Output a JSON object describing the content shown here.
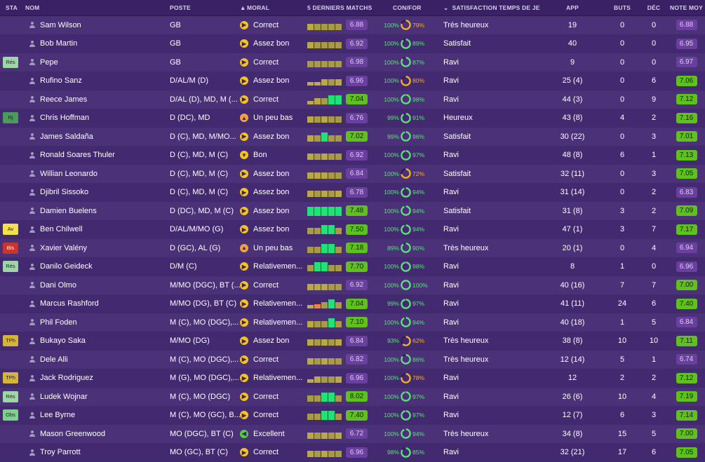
{
  "headers": {
    "sta": "STA",
    "nom": "NOM",
    "poste": "POSTE",
    "moral": "MORAL",
    "last5": "5 DERNIERS MATCHS",
    "confor": "CON/FOR",
    "satisfaction": "SATISFACTION TEMPS DE JEU",
    "app": "APP",
    "buts": "BUTS",
    "dec": "DÉC",
    "note": "NOTE MOY"
  },
  "colors": {
    "bg": "#3b2368",
    "green": "#5fc11e",
    "purple_pill": "#6b3fa0",
    "moral_yellow": "#f4c41a",
    "moral_orange": "#f0a040",
    "moral_green": "#4cd23a"
  },
  "rows": [
    {
      "sta": "",
      "nom": "Sam Wilson",
      "poste": "GB",
      "moral": "Correct",
      "moral_kind": "correct",
      "last5": [
        "y",
        "g",
        "g",
        "g",
        "g"
      ],
      "last_avg": "6.88",
      "last_good": false,
      "con": "100%",
      "for": "79%",
      "for_frac": 0.79,
      "sat": "Très heureux",
      "app": "19",
      "buts": "0",
      "dec": "0",
      "note": "6.88",
      "note_good": false
    },
    {
      "sta": "",
      "nom": "Bob Martin",
      "poste": "GB",
      "moral": "Assez bon",
      "moral_kind": "correct",
      "last5": [
        "y",
        "g",
        "g",
        "g",
        "g"
      ],
      "last_avg": "6.92",
      "last_good": false,
      "con": "100%",
      "for": "89%",
      "for_frac": 0.89,
      "sat": "Satisfait",
      "app": "40",
      "buts": "0",
      "dec": "0",
      "note": "6.95",
      "note_good": false
    },
    {
      "sta": "Rés",
      "sta_color": "#9ed6a8",
      "nom": "Pepe",
      "poste": "GB",
      "moral": "Correct",
      "moral_kind": "correct",
      "last5": [
        "g",
        "g",
        "g",
        "g",
        "g"
      ],
      "last_avg": "6.98",
      "last_good": false,
      "con": "100%",
      "for": "87%",
      "for_frac": 0.87,
      "sat": "Ravi",
      "app": "9",
      "buts": "0",
      "dec": "0",
      "note": "6.97",
      "note_good": false
    },
    {
      "sta": "",
      "nom": "Rufino Sanz",
      "poste": "D/AL/M (D)",
      "moral": "Assez bon",
      "moral_kind": "correct",
      "last5": [
        "s",
        "s",
        "y",
        "g",
        "y"
      ],
      "last_avg": "6.96",
      "last_good": false,
      "con": "100%",
      "for": "80%",
      "for_frac": 0.8,
      "sat": "Ravi",
      "app": "25 (4)",
      "buts": "0",
      "dec": "6",
      "note": "7.06",
      "note_good": true
    },
    {
      "sta": "",
      "nom": "Reece James",
      "poste": "D/AL (D), MD, M (...",
      "moral": "Correct",
      "moral_kind": "correct",
      "last5": [
        "s",
        "y",
        "g",
        "b",
        "b"
      ],
      "last_avg": "7.04",
      "last_good": true,
      "con": "100%",
      "for": "98%",
      "for_frac": 0.98,
      "sat": "Ravi",
      "app": "44 (3)",
      "buts": "0",
      "dec": "9",
      "note": "7.12",
      "note_good": true
    },
    {
      "sta": "Rj",
      "sta_color": "#4c9a5e",
      "nom": "Chris Hoffman",
      "poste": "D (DC), MD",
      "moral": "Un peu bas",
      "moral_kind": "bas",
      "last5": [
        "y",
        "g",
        "y",
        "g",
        "g"
      ],
      "last_avg": "6.76",
      "last_good": false,
      "con": "99%",
      "for": "91%",
      "for_frac": 0.91,
      "sat": "Heureux",
      "app": "43 (8)",
      "buts": "4",
      "dec": "2",
      "note": "7.16",
      "note_good": true
    },
    {
      "sta": "",
      "nom": "James Saldaña",
      "poste": "D (C), MD, M/MO...",
      "moral": "Assez bon",
      "moral_kind": "correct",
      "last5": [
        "y",
        "g",
        "b",
        "g",
        "g"
      ],
      "last_avg": "7.02",
      "last_good": true,
      "con": "99%",
      "for": "96%",
      "for_frac": 0.96,
      "sat": "Satisfait",
      "app": "30 (22)",
      "buts": "0",
      "dec": "3",
      "note": "7.01",
      "note_good": true
    },
    {
      "sta": "",
      "nom": "Ronald Soares Thuler",
      "poste": "D (C), MD, M (C)",
      "moral": "Bon",
      "moral_kind": "bon",
      "last5": [
        "y",
        "g",
        "y",
        "g",
        "g"
      ],
      "last_avg": "6.92",
      "last_good": false,
      "con": "100%",
      "for": "97%",
      "for_frac": 0.97,
      "sat": "Ravi",
      "app": "48 (8)",
      "buts": "6",
      "dec": "1",
      "note": "7.13",
      "note_good": true
    },
    {
      "sta": "",
      "nom": "Willian Leonardo",
      "poste": "D (C), MD, M (C)",
      "moral": "Assez bon",
      "moral_kind": "correct",
      "last5": [
        "y",
        "y",
        "y",
        "g",
        "g"
      ],
      "last_avg": "6.84",
      "last_good": false,
      "con": "100%",
      "for": "72%",
      "for_frac": 0.72,
      "sat": "Satisfait",
      "app": "32 (11)",
      "buts": "0",
      "dec": "3",
      "note": "7.05",
      "note_good": true
    },
    {
      "sta": "",
      "nom": "Djibril Sissoko",
      "poste": "D (C), MD, M (C)",
      "moral": "Assez bon",
      "moral_kind": "correct",
      "last5": [
        "y",
        "g",
        "y",
        "g",
        "y"
      ],
      "last_avg": "6.78",
      "last_good": false,
      "con": "100%",
      "for": "94%",
      "for_frac": 0.94,
      "sat": "Ravi",
      "app": "31 (14)",
      "buts": "0",
      "dec": "2",
      "note": "6.83",
      "note_good": false
    },
    {
      "sta": "",
      "nom": "Damien Buelens",
      "poste": "D (DC), MD, M (C)",
      "moral": "Assez bon",
      "moral_kind": "correct",
      "last5": [
        "b",
        "b",
        "b",
        "b",
        "b"
      ],
      "last_avg": "7.48",
      "last_good": true,
      "con": "100%",
      "for": "94%",
      "for_frac": 0.94,
      "sat": "Satisfait",
      "app": "31 (8)",
      "buts": "3",
      "dec": "2",
      "note": "7.09",
      "note_good": true
    },
    {
      "sta": "Av",
      "sta_color": "#f2e24a",
      "nom": "Ben Chilwell",
      "poste": "D/AL/M/MO (G)",
      "moral": "Assez bon",
      "moral_kind": "correct",
      "last5": [
        "g",
        "g",
        "b",
        "b",
        "g"
      ],
      "last_avg": "7.50",
      "last_good": true,
      "con": "100%",
      "for": "94%",
      "for_frac": 0.94,
      "sat": "Ravi",
      "app": "47 (1)",
      "buts": "3",
      "dec": "7",
      "note": "7.17",
      "note_good": true
    },
    {
      "sta": "Bls",
      "sta_color": "#c8352e",
      "sta_text": "#ffffff",
      "nom": "Xavier Valény",
      "poste": "D (GC), AL (G)",
      "moral": "Un peu bas",
      "moral_kind": "bas",
      "last5": [
        "g",
        "g",
        "b",
        "b",
        "g"
      ],
      "last_avg": "7.18",
      "last_good": true,
      "con": "89%",
      "for": "90%",
      "for_frac": 0.9,
      "sat": "Très heureux",
      "app": "20 (1)",
      "buts": "0",
      "dec": "4",
      "note": "6.94",
      "note_good": false
    },
    {
      "sta": "Rés",
      "sta_color": "#9ed6a8",
      "nom": "Danilo Geideck",
      "poste": "D/M (C)",
      "moral": "Relativemen...",
      "moral_kind": "correct",
      "last5": [
        "g",
        "b",
        "b",
        "g",
        "g"
      ],
      "last_avg": "7.70",
      "last_good": true,
      "con": "100%",
      "for": "98%",
      "for_frac": 0.98,
      "sat": "Ravi",
      "app": "8",
      "buts": "1",
      "dec": "0",
      "note": "6.96",
      "note_good": false
    },
    {
      "sta": "",
      "nom": "Dani Olmo",
      "poste": "M/MO (DGC), BT (...",
      "moral": "Correct",
      "moral_kind": "correct",
      "last5": [
        "y",
        "y",
        "y",
        "g",
        "g"
      ],
      "last_avg": "6.92",
      "last_good": false,
      "con": "100%",
      "for": "100%",
      "for_frac": 1.0,
      "sat": "Ravi",
      "app": "40 (16)",
      "buts": "7",
      "dec": "7",
      "note": "7.00",
      "note_good": true
    },
    {
      "sta": "",
      "nom": "Marcus Rashford",
      "poste": "M/MO (DG), BT (C)",
      "moral": "Relativemen...",
      "moral_kind": "correct",
      "last5": [
        "s",
        "o",
        "g",
        "b",
        "g"
      ],
      "last_avg": "7.04",
      "last_good": true,
      "con": "99%",
      "for": "97%",
      "for_frac": 0.97,
      "sat": "Ravi",
      "app": "41 (11)",
      "buts": "24",
      "dec": "6",
      "note": "7.40",
      "note_good": true
    },
    {
      "sta": "",
      "nom": "Phil Foden",
      "poste": "M (C), MO (DGC),...",
      "moral": "Relativemen...",
      "moral_kind": "correct",
      "last5": [
        "y",
        "g",
        "g",
        "b",
        "g"
      ],
      "last_avg": "7.10",
      "last_good": true,
      "con": "100%",
      "for": "94%",
      "for_frac": 0.94,
      "sat": "Ravi",
      "app": "40 (18)",
      "buts": "1",
      "dec": "5",
      "note": "6.84",
      "note_good": false
    },
    {
      "sta": "TPh",
      "sta_color": "#d6b43a",
      "nom": "Bukayo Saka",
      "poste": "M/MO (DG)",
      "moral": "Assez bon",
      "moral_kind": "correct",
      "last5": [
        "y",
        "g",
        "y",
        "g",
        "y"
      ],
      "last_avg": "6.84",
      "last_good": false,
      "con": "93%",
      "for": "62%",
      "for_frac": 0.62,
      "sat": "Très heureux",
      "app": "38 (8)",
      "buts": "10",
      "dec": "10",
      "note": "7.11",
      "note_good": true
    },
    {
      "sta": "",
      "nom": "Dele Alli",
      "poste": "M (C), MO (DGC),...",
      "moral": "Correct",
      "moral_kind": "correct",
      "last5": [
        "y",
        "g",
        "y",
        "g",
        "g"
      ],
      "last_avg": "6.82",
      "last_good": false,
      "con": "100%",
      "for": "86%",
      "for_frac": 0.86,
      "sat": "Très heureux",
      "app": "12 (14)",
      "buts": "5",
      "dec": "1",
      "note": "6.74",
      "note_good": false
    },
    {
      "sta": "TPh",
      "sta_color": "#d6b43a",
      "nom": "Jack Rodriguez",
      "poste": "M (G), MO (DGC),...",
      "moral": "Relativemen...",
      "moral_kind": "correct",
      "last5": [
        "s",
        "y",
        "g",
        "g",
        "y"
      ],
      "last_avg": "6.96",
      "last_good": false,
      "con": "100%",
      "for": "78%",
      "for_frac": 0.78,
      "sat": "Ravi",
      "app": "12",
      "buts": "2",
      "dec": "2",
      "note": "7.12",
      "note_good": true
    },
    {
      "sta": "Rés",
      "sta_color": "#9ed6a8",
      "nom": "Ludek Wojnar",
      "poste": "M (C), MO (DGC)",
      "moral": "Correct",
      "moral_kind": "correct",
      "last5": [
        "g",
        "g",
        "b",
        "b",
        "g"
      ],
      "last_avg": "8.02",
      "last_good": true,
      "con": "100%",
      "for": "97%",
      "for_frac": 0.97,
      "sat": "Ravi",
      "app": "26 (6)",
      "buts": "10",
      "dec": "4",
      "note": "7.19",
      "note_good": true
    },
    {
      "sta": "Obs",
      "sta_color": "#7fcf8d",
      "nom": "Lee Byrne",
      "poste": "M (C), MO (GC), B...",
      "moral": "Correct",
      "moral_kind": "correct",
      "last5": [
        "g",
        "g",
        "b",
        "b",
        "g"
      ],
      "last_avg": "7.40",
      "last_good": true,
      "con": "100%",
      "for": "97%",
      "for_frac": 0.97,
      "sat": "Ravi",
      "app": "12 (7)",
      "buts": "6",
      "dec": "3",
      "note": "7.14",
      "note_good": true
    },
    {
      "sta": "",
      "nom": "Mason Greenwood",
      "poste": "MO (DGC), BT (C)",
      "moral": "Excellent",
      "moral_kind": "excellent",
      "last5": [
        "y",
        "g",
        "y",
        "g",
        "y"
      ],
      "last_avg": "6.72",
      "last_good": false,
      "con": "100%",
      "for": "94%",
      "for_frac": 0.94,
      "sat": "Très heureux",
      "app": "34 (8)",
      "buts": "15",
      "dec": "5",
      "note": "7.00",
      "note_good": true
    },
    {
      "sta": "",
      "nom": "Troy Parrott",
      "poste": "MO (GC), BT (C)",
      "moral": "Correct",
      "moral_kind": "correct",
      "last5": [
        "y",
        "g",
        "y",
        "g",
        "g"
      ],
      "last_avg": "6.96",
      "last_good": false,
      "con": "98%",
      "for": "85%",
      "for_frac": 0.85,
      "sat": "Ravi",
      "app": "32 (21)",
      "buts": "17",
      "dec": "6",
      "note": "7.05",
      "note_good": true
    }
  ]
}
